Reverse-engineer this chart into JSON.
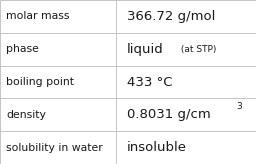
{
  "rows": [
    {
      "label": "molar mass",
      "value": "366.72 g/mol",
      "value_suffix": null,
      "superscript": null
    },
    {
      "label": "phase",
      "value": "liquid",
      "value_suffix": " (at STP)",
      "superscript": null
    },
    {
      "label": "boiling point",
      "value": "433 °C",
      "value_suffix": null,
      "superscript": null
    },
    {
      "label": "density",
      "value": "0.8031 g/cm",
      "value_suffix": null,
      "superscript": "3"
    },
    {
      "label": "solubility in water",
      "value": "insoluble",
      "value_suffix": null,
      "superscript": null
    }
  ],
  "background_color": "#ffffff",
  "border_color": "#bbbbbb",
  "divider_color": "#bbbbbb",
  "col_split": 0.455,
  "label_fontsize": 7.8,
  "value_fontsize": 9.5,
  "suffix_fontsize": 6.5,
  "super_fontsize": 6.5,
  "label_color": "#1a1a1a",
  "value_color": "#1a1a1a",
  "line_width": 0.6
}
